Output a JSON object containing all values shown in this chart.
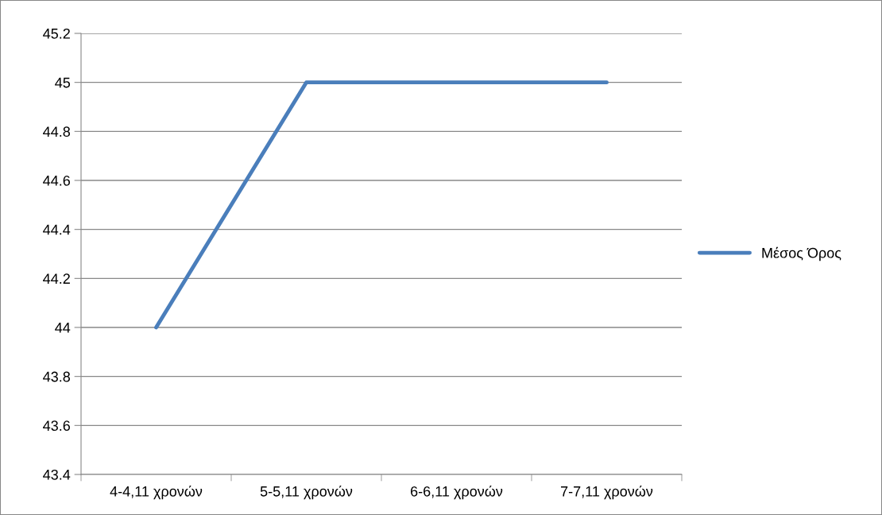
{
  "chart_data": {
    "type": "line",
    "categories": [
      "4-4,11 χρονών",
      "5-5,11 χρονών",
      "6-6,11 χρονών",
      "7-7,11 χρονών"
    ],
    "series": [
      {
        "name": "Μέσος Όρος",
        "color": "#4a7ebb",
        "values": [
          44,
          45,
          45,
          45
        ]
      }
    ],
    "ylim": [
      43.4,
      45.2
    ],
    "yticks": [
      43.4,
      43.6,
      43.8,
      44,
      44.2,
      44.4,
      44.6,
      44.8,
      45,
      45.2
    ],
    "grid": "y",
    "legend": "right",
    "marker": "none",
    "line_style": "solid"
  }
}
